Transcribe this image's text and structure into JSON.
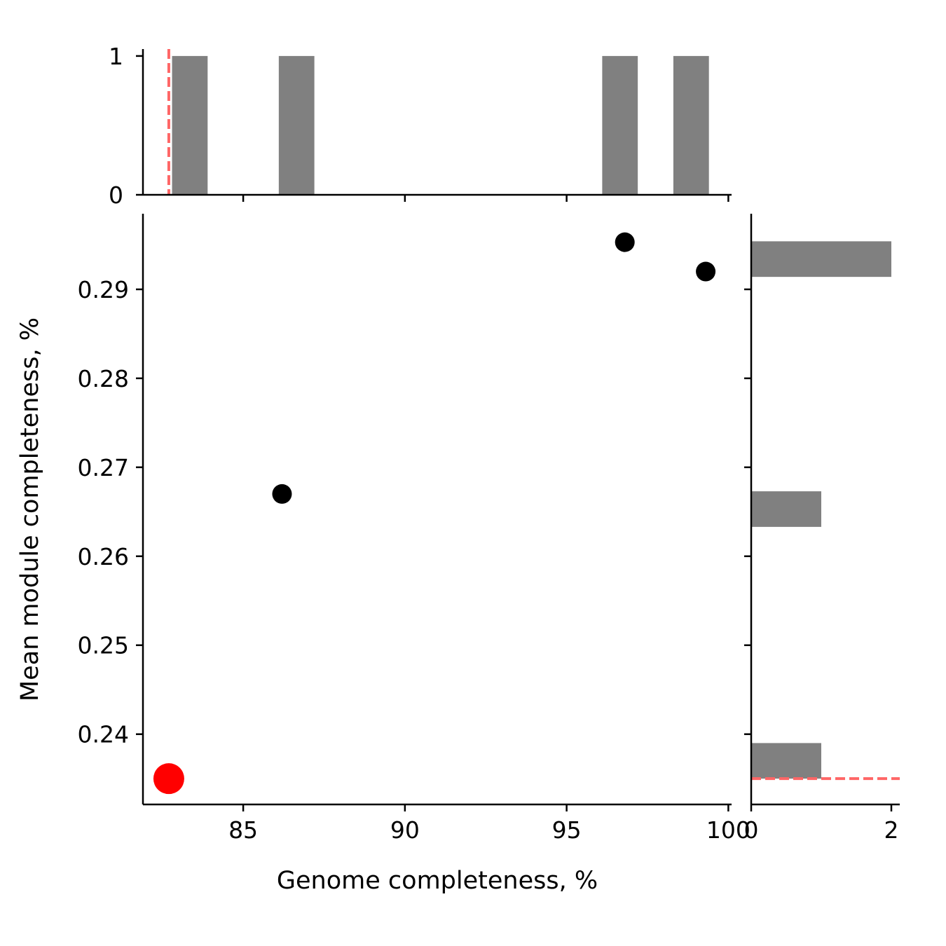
{
  "chart_data": {
    "type": "scatter",
    "xlabel": "Genome completeness, %",
    "ylabel": "Mean module completeness, %",
    "xlim": [
      81.9,
      100.1
    ],
    "ylim": [
      0.2321,
      0.2985
    ],
    "x_ticks": [
      85,
      90,
      95,
      100
    ],
    "x_tick_labels": [
      "85",
      "90",
      "95",
      "100"
    ],
    "y_ticks": [
      0.24,
      0.25,
      0.26,
      0.27,
      0.28,
      0.29
    ],
    "y_tick_labels": [
      "0.24",
      "0.25",
      "0.26",
      "0.27",
      "0.28",
      "0.29"
    ],
    "grid": false,
    "points": [
      {
        "x": 86.2,
        "y": 0.267,
        "color": "#000000"
      },
      {
        "x": 96.8,
        "y": 0.2953,
        "color": "#000000"
      },
      {
        "x": 99.3,
        "y": 0.292,
        "color": "#000000"
      }
    ],
    "highlight_point": {
      "x": 82.7,
      "y": 0.235,
      "color": "#ff0000"
    },
    "reference_line_color": "#ff6666",
    "histogram_color": "#808080",
    "top_histogram": {
      "ylim": [
        0,
        1.05
      ],
      "y_ticks": [
        0,
        1
      ],
      "y_tick_labels": [
        "0",
        "1"
      ],
      "bins": [
        {
          "x0": 82.8,
          "x1": 83.9,
          "count": 1
        },
        {
          "x0": 86.1,
          "x1": 87.2,
          "count": 1
        },
        {
          "x0": 96.1,
          "x1": 97.2,
          "count": 1
        },
        {
          "x0": 98.3,
          "x1": 99.4,
          "count": 1
        }
      ]
    },
    "right_histogram": {
      "xlim": [
        0,
        2.12
      ],
      "x_ticks": [
        0,
        2
      ],
      "x_tick_labels": [
        "0",
        "2"
      ],
      "bins": [
        {
          "y0": 0.235,
          "y1": 0.239,
          "count": 1
        },
        {
          "y0": 0.2633,
          "y1": 0.2673,
          "count": 1
        },
        {
          "y0": 0.2914,
          "y1": 0.2954,
          "count": 2
        }
      ]
    }
  }
}
